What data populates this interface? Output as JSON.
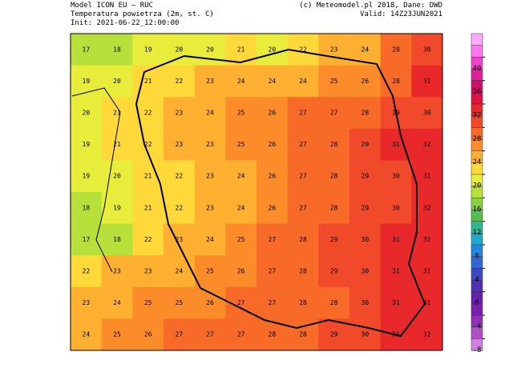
{
  "header": {
    "left": [
      "Model ICON EU – RUC",
      "Temperatura powietrza (2m, st. C)",
      "Init: 2021-06-22_12:00:00"
    ],
    "right": [
      "(c) Meteomodel.pl 2018, Dane: DWD",
      "Valid: 14Z23JUN2021"
    ]
  },
  "map": {
    "values": [
      [
        17,
        18,
        19,
        20,
        20,
        21,
        20,
        22,
        23,
        24,
        28,
        30
      ],
      [
        19,
        20,
        21,
        22,
        23,
        24,
        24,
        24,
        25,
        26,
        28,
        31
      ],
      [
        20,
        21,
        22,
        23,
        24,
        25,
        26,
        27,
        27,
        28,
        29,
        30
      ],
      [
        19,
        21,
        22,
        23,
        23,
        25,
        26,
        27,
        28,
        29,
        31,
        32
      ],
      [
        19,
        20,
        21,
        22,
        23,
        24,
        26,
        27,
        28,
        29,
        30,
        31
      ],
      [
        18,
        19,
        21,
        22,
        23,
        24,
        26,
        27,
        28,
        29,
        30,
        32
      ],
      [
        17,
        18,
        22,
        23,
        24,
        25,
        27,
        28,
        29,
        30,
        31,
        32
      ],
      [
        22,
        23,
        23,
        24,
        25,
        26,
        27,
        28,
        29,
        30,
        31,
        31
      ],
      [
        23,
        24,
        25,
        25,
        26,
        27,
        27,
        28,
        28,
        30,
        31,
        31
      ],
      [
        24,
        25,
        26,
        27,
        27,
        27,
        28,
        28,
        29,
        30,
        31,
        32
      ]
    ]
  },
  "colorbar": {
    "lim": [
      -10,
      44
    ],
    "ticks": [
      40,
      36,
      32,
      28,
      24,
      20,
      16,
      12,
      8,
      4,
      0,
      -4,
      -8
    ],
    "colors": [
      "#ffaaff",
      "#ff77ee",
      "#ee44cc",
      "#dd2299",
      "#cc1166",
      "#dd1144",
      "#e8282a",
      "#f04a2a",
      "#f86a28",
      "#fc8c2a",
      "#ffb030",
      "#ffd83a",
      "#e8ec3a",
      "#b8e03a",
      "#88d040",
      "#55c050",
      "#30b890",
      "#20a8c8",
      "#2088e0",
      "#3366d0",
      "#4048c0",
      "#5030b0",
      "#6420a8",
      "#7820b0",
      "#9030b8",
      "#b050c8",
      "#d080e0"
    ]
  }
}
